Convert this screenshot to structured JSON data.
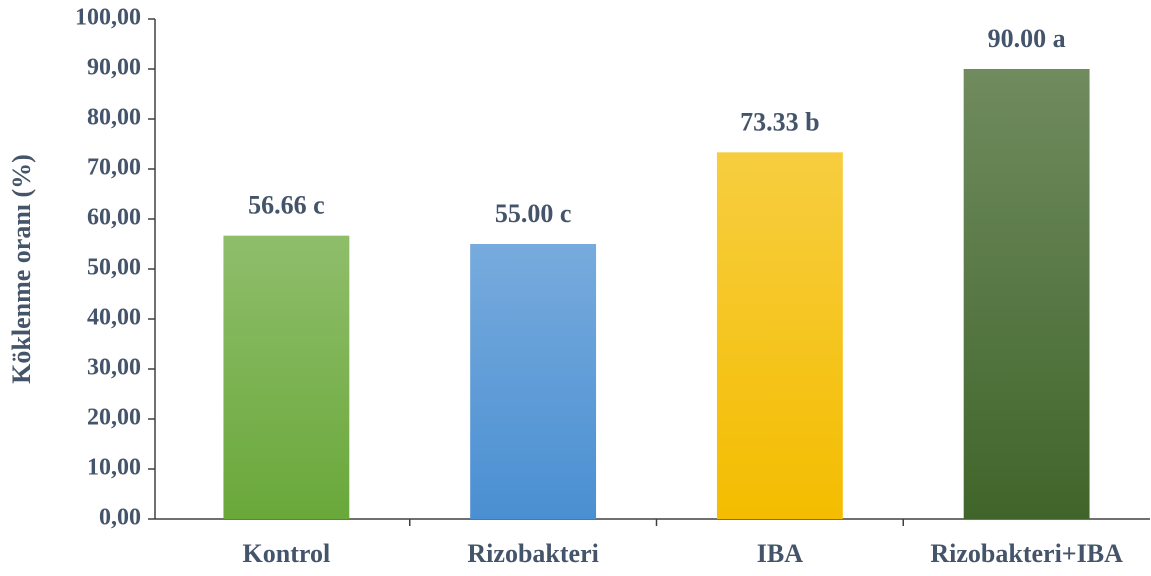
{
  "chart_data": {
    "type": "bar",
    "y_label": "Köklenme oranı (%)",
    "categories": [
      "Kontrol",
      "Rizobakteri",
      "IBA",
      "Rizobakteri+IBA"
    ],
    "values": [
      56.66,
      55.0,
      73.33,
      90.0
    ],
    "value_labels": [
      "56.66 c",
      "55.00 c",
      "73.33 b",
      "90.00 a"
    ],
    "colors": [
      "#6aa83a",
      "#4a8fd2",
      "#f4bd00",
      "#40652a"
    ],
    "ylim": [
      0,
      100
    ],
    "yticks": [
      {
        "value": 0,
        "label": "0,00"
      },
      {
        "value": 10,
        "label": "10,00"
      },
      {
        "value": 20,
        "label": "20,00"
      },
      {
        "value": 30,
        "label": "30,00"
      },
      {
        "value": 40,
        "label": "40,00"
      },
      {
        "value": 50,
        "label": "50,00"
      },
      {
        "value": 60,
        "label": "60,00"
      },
      {
        "value": 70,
        "label": "70,00"
      },
      {
        "value": 80,
        "label": "80,00"
      },
      {
        "value": 90,
        "label": "90,00"
      },
      {
        "value": 100,
        "label": "100,00"
      }
    ],
    "grid": false
  }
}
